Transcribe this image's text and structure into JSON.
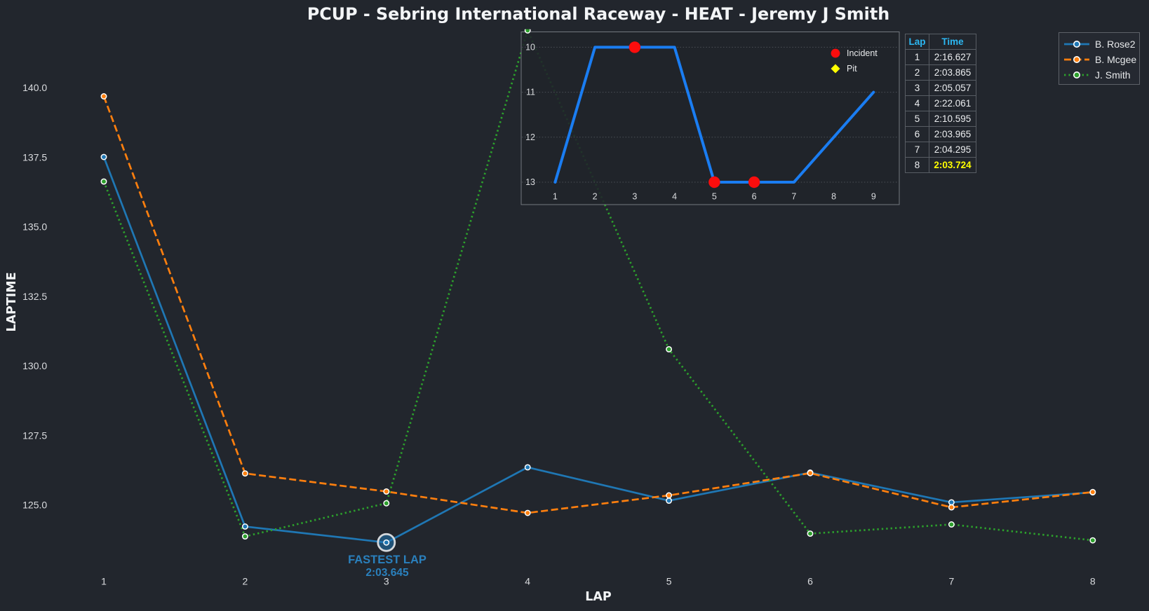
{
  "title": "PCUP - Sebring International Raceway - HEAT - Jeremy J Smith",
  "colors": {
    "background": "#22262d",
    "title_text": "#f3f5f7",
    "tick_text": "#d9dbde",
    "blue": "#1f77b4",
    "orange": "#ff7f0e",
    "green": "#2ca02c",
    "marker_edge": "#ffffff",
    "inset_line": "#1a7df2",
    "incident_red": "#fb0d0d",
    "pit_yellow": "#ffff00",
    "table_header": "#2cb8f3",
    "fastest_yellow": "#ffff00",
    "annotation_blue": "#2a80bd",
    "grid": "#4b5057",
    "frame": "#73787f"
  },
  "chart_data": [
    {
      "id": "laptime-chart",
      "type": "line",
      "title": "PCUP - Sebring International Raceway - HEAT - Jeremy J Smith",
      "xlabel": "LAP",
      "ylabel": "LAPTIME",
      "x": [
        1,
        2,
        3,
        4,
        5,
        6,
        7,
        8
      ],
      "xticks": [
        1,
        2,
        3,
        4,
        5,
        6,
        7,
        8
      ],
      "yticks": [
        125.0,
        127.5,
        130.0,
        132.5,
        135.0,
        137.5,
        140.0
      ],
      "xlim": [
        0.65,
        8.35
      ],
      "ylim": [
        122.7,
        142.1
      ],
      "grid": false,
      "legend_position": "upper right",
      "series": [
        {
          "name": "B. Rose2",
          "color": "#1f77b4",
          "linestyle": "solid",
          "marker": "circle",
          "values": [
            137.51,
            124.22,
            123.645,
            126.35,
            125.15,
            126.16,
            125.09,
            125.45
          ]
        },
        {
          "name": "B. Mcgee",
          "color": "#ff7f0e",
          "linestyle": "dashed",
          "marker": "circle",
          "values": [
            139.69,
            126.13,
            125.48,
            124.71,
            125.34,
            126.14,
            124.91,
            125.46
          ]
        },
        {
          "name": "J. Smith",
          "color": "#2ca02c",
          "linestyle": "dotted",
          "marker": "circle",
          "values": [
            136.627,
            123.865,
            125.057,
            142.061,
            130.595,
            123.965,
            124.295,
            123.724
          ]
        }
      ],
      "annotation": {
        "label": "FASTEST LAP",
        "time": "2:03.645",
        "lap": 3,
        "value": 123.645,
        "series": "B. Rose2"
      }
    },
    {
      "id": "position-inset",
      "type": "line",
      "x": [
        1,
        2,
        3,
        4,
        5,
        6,
        7,
        8,
        9
      ],
      "xticks": [
        1,
        2,
        3,
        4,
        5,
        6,
        7,
        8,
        9
      ],
      "yticks": [
        10,
        11,
        12,
        13
      ],
      "y_inverted": true,
      "grid": "horizontal-dotted",
      "series": [
        {
          "name": "Position",
          "color": "#1a7df2",
          "linestyle": "solid",
          "values": [
            13,
            10,
            10,
            10,
            13,
            13,
            13,
            12,
            11
          ]
        }
      ],
      "incidents": [
        {
          "lap": 3,
          "position": 10
        },
        {
          "lap": 5,
          "position": 13
        },
        {
          "lap": 6,
          "position": 13
        }
      ],
      "pits": []
    }
  ],
  "lap_table": {
    "headers": [
      "Lap",
      "Time"
    ],
    "rows": [
      [
        "1",
        "2:16.627"
      ],
      [
        "2",
        "2:03.865"
      ],
      [
        "3",
        "2:05.057"
      ],
      [
        "4",
        "2:22.061"
      ],
      [
        "5",
        "2:10.595"
      ],
      [
        "6",
        "2:03.965"
      ],
      [
        "7",
        "2:04.295"
      ],
      [
        "8",
        "2:03.724"
      ]
    ],
    "highlight_row": 8
  },
  "legend": {
    "entries": [
      {
        "label": "B. Rose2",
        "color": "#1f77b4",
        "linestyle": "solid"
      },
      {
        "label": "B. Mcgee",
        "color": "#ff7f0e",
        "linestyle": "dashed"
      },
      {
        "label": "J. Smith",
        "color": "#2ca02c",
        "linestyle": "dotted"
      }
    ]
  },
  "inset_legend": {
    "entries": [
      {
        "label": "Incident",
        "marker": "circle",
        "color": "#fb0d0d"
      },
      {
        "label": "Pit",
        "marker": "diamond",
        "color": "#ffff00"
      }
    ]
  },
  "annotation": {
    "label": "FASTEST LAP",
    "time": "2:03.645"
  }
}
